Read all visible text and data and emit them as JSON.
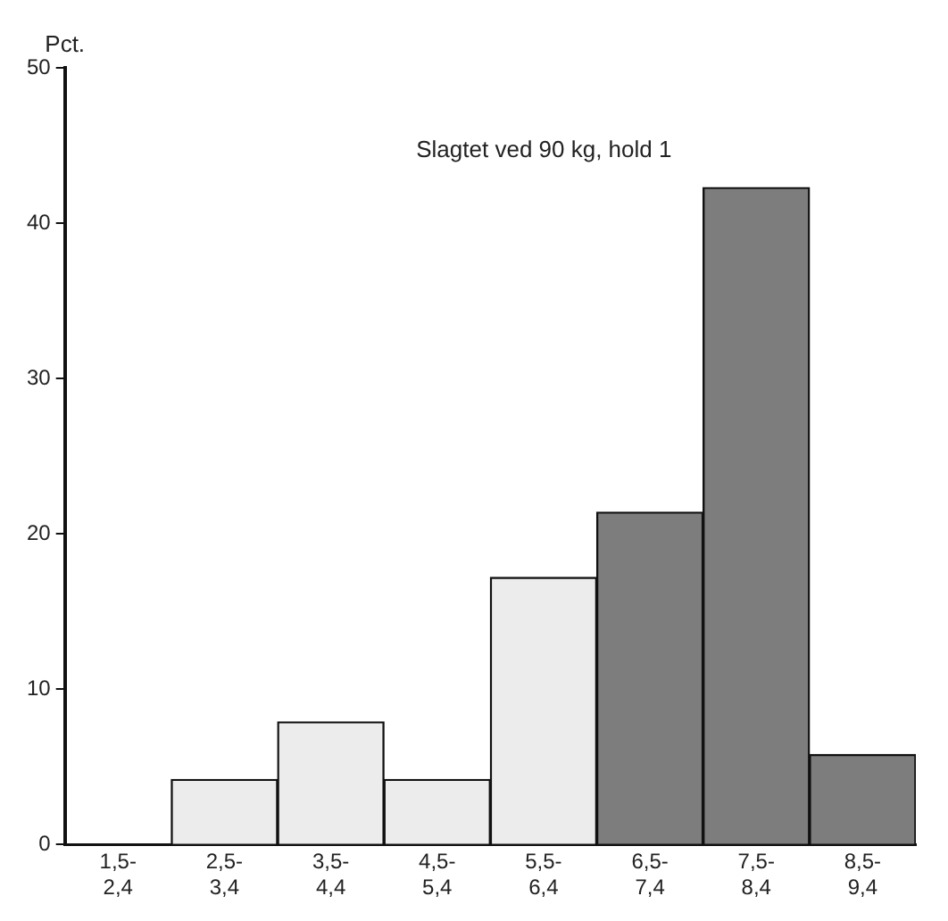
{
  "chart_data": {
    "type": "bar",
    "title": "Slagtet ved 90 kg, hold 1",
    "ylabel": "Pct.",
    "categories": [
      "1,5-2,4",
      "2,5-3,4",
      "3,5-4,4",
      "4,5-5,4",
      "5,5-6,4",
      "6,5-7,4",
      "7,5-8,4",
      "8,5-9,4"
    ],
    "values": [
      0,
      4.2,
      7.9,
      4.2,
      17.2,
      21.4,
      42.3,
      5.8
    ],
    "colors": [
      "#ececec",
      "#ececec",
      "#ececec",
      "#ececec",
      "#ececec",
      "#7d7d7d",
      "#7d7d7d",
      "#7d7d7d"
    ],
    "ylim": [
      0,
      50
    ],
    "yticks": [
      0,
      10,
      20,
      30,
      40,
      50
    ],
    "grid": false,
    "legend": false
  }
}
